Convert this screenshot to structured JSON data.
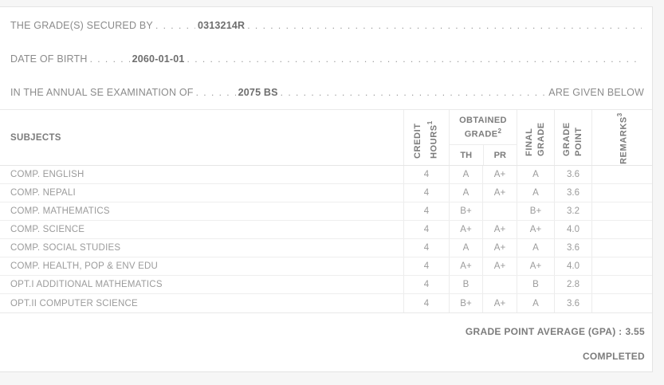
{
  "info": {
    "lines": [
      {
        "label": "THE GRADE(S) SECURED BY",
        "value": "0313214R",
        "suffix": ""
      },
      {
        "label": "DATE OF BIRTH",
        "value": "2060-01-01",
        "suffix": ""
      },
      {
        "label": "IN THE ANNUAL SE EXAMINATION OF",
        "value": "2075 BS",
        "suffix": "ARE GIVEN BELOW"
      }
    ]
  },
  "table": {
    "headers": {
      "subjects": "SUBJECTS",
      "credit_hours": {
        "text": "CREDIT HOURS",
        "sup": "1"
      },
      "obtained_grade": {
        "text": "OBTAINED GRADE",
        "sup": "2"
      },
      "th": "TH",
      "pr": "PR",
      "final_grade": "FINAL GRADE",
      "grade_point": "GRADE POINT",
      "remarks": {
        "text": "REMARKS",
        "sup": "3"
      }
    },
    "rows": [
      {
        "subject": "COMP. ENGLISH",
        "credit": "4",
        "th": "A",
        "pr": "A+",
        "final": "A",
        "point": "3.6",
        "remarks": ""
      },
      {
        "subject": "COMP. NEPALI",
        "credit": "4",
        "th": "A",
        "pr": "A+",
        "final": "A",
        "point": "3.6",
        "remarks": ""
      },
      {
        "subject": "COMP. MATHEMATICS",
        "credit": "4",
        "th": "B+",
        "pr": "",
        "final": "B+",
        "point": "3.2",
        "remarks": ""
      },
      {
        "subject": "COMP. SCIENCE",
        "credit": "4",
        "th": "A+",
        "pr": "A+",
        "final": "A+",
        "point": "4.0",
        "remarks": ""
      },
      {
        "subject": "COMP. SOCIAL STUDIES",
        "credit": "4",
        "th": "A",
        "pr": "A+",
        "final": "A",
        "point": "3.6",
        "remarks": ""
      },
      {
        "subject": "COMP. HEALTH, POP & ENV EDU",
        "credit": "4",
        "th": "A+",
        "pr": "A+",
        "final": "A+",
        "point": "4.0",
        "remarks": ""
      },
      {
        "subject": "OPT.I ADDITIONAL MATHEMATICS",
        "credit": "4",
        "th": "B",
        "pr": "",
        "final": "B",
        "point": "2.8",
        "remarks": ""
      },
      {
        "subject": "OPT.II COMPUTER SCIENCE",
        "credit": "4",
        "th": "B+",
        "pr": "A+",
        "final": "A",
        "point": "3.6",
        "remarks": ""
      }
    ]
  },
  "summary": {
    "gpa_label": "GRADE POINT AVERAGE (GPA) :",
    "gpa_value": "3.55",
    "status": "COMPLETED"
  }
}
